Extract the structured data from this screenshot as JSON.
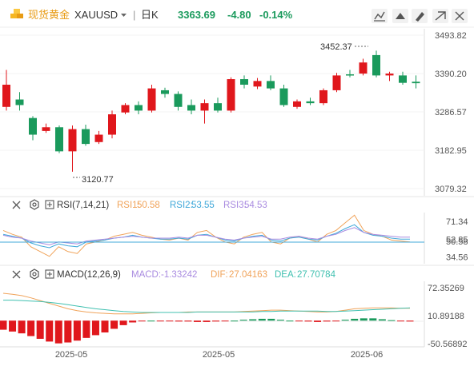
{
  "header": {
    "instrument_name": "现货黄金",
    "symbol": "XAUUSD",
    "separator": "|",
    "period": "日K",
    "price": "3363.69",
    "change": "-4.80",
    "change_percent": "-0.14%"
  },
  "colors": {
    "up": "#e0171c",
    "down": "#1a9a5c",
    "accent": "#1a9a5c",
    "rsi1": "#f0a35a",
    "rsi2": "#40a8d9",
    "rsi3": "#a98be0",
    "dif": "#f0a35a",
    "dea": "#40c0b0"
  },
  "icons": {
    "logo": "gold-bars-icon",
    "toolbar": [
      "draw-line-icon",
      "draw-tools-icon",
      "brush-icon",
      "minimize-icon",
      "close-icon"
    ],
    "indicator": [
      "close-icon",
      "settings-icon",
      "expand-icon"
    ]
  },
  "chart_data": [
    {
      "type": "candlestick",
      "y_axis_labels": [
        "3493.82",
        "3390.20",
        "3286.57",
        "3182.95",
        "3079.32"
      ],
      "ylim": [
        3079.32,
        3493.82
      ],
      "annotations": [
        {
          "text": "3452.37",
          "label": "high"
        },
        {
          "text": "3120.77",
          "label": "low"
        }
      ],
      "candles": [
        {
          "o": 3300,
          "c": 3360,
          "h": 3400,
          "l": 3290
        },
        {
          "o": 3320,
          "c": 3305,
          "h": 3340,
          "l": 3290
        },
        {
          "o": 3270,
          "c": 3225,
          "h": 3275,
          "l": 3210
        },
        {
          "o": 3235,
          "c": 3245,
          "h": 3255,
          "l": 3230
        },
        {
          "o": 3245,
          "c": 3180,
          "h": 3250,
          "l": 3175
        },
        {
          "o": 3180,
          "c": 3240,
          "h": 3250,
          "l": 3125
        },
        {
          "o": 3240,
          "c": 3200,
          "h": 3252,
          "l": 3195
        },
        {
          "o": 3205,
          "c": 3225,
          "h": 3235,
          "l": 3200
        },
        {
          "o": 3225,
          "c": 3280,
          "h": 3290,
          "l": 3215
        },
        {
          "o": 3285,
          "c": 3305,
          "h": 3310,
          "l": 3280
        },
        {
          "o": 3305,
          "c": 3290,
          "h": 3315,
          "l": 3280
        },
        {
          "o": 3290,
          "c": 3350,
          "h": 3360,
          "l": 3285
        },
        {
          "o": 3345,
          "c": 3335,
          "h": 3352,
          "l": 3325
        },
        {
          "o": 3335,
          "c": 3300,
          "h": 3342,
          "l": 3290
        },
        {
          "o": 3305,
          "c": 3290,
          "h": 3320,
          "l": 3280
        },
        {
          "o": 3290,
          "c": 3310,
          "h": 3320,
          "l": 3255
        },
        {
          "o": 3310,
          "c": 3290,
          "h": 3325,
          "l": 3285
        },
        {
          "o": 3290,
          "c": 3375,
          "h": 3380,
          "l": 3285
        },
        {
          "o": 3375,
          "c": 3360,
          "h": 3385,
          "l": 3350
        },
        {
          "o": 3355,
          "c": 3370,
          "h": 3378,
          "l": 3348
        },
        {
          "o": 3370,
          "c": 3350,
          "h": 3385,
          "l": 3345
        },
        {
          "o": 3350,
          "c": 3305,
          "h": 3360,
          "l": 3300
        },
        {
          "o": 3300,
          "c": 3315,
          "h": 3320,
          "l": 3295
        },
        {
          "o": 3315,
          "c": 3310,
          "h": 3325,
          "l": 3305
        },
        {
          "o": 3310,
          "c": 3345,
          "h": 3350,
          "l": 3305
        },
        {
          "o": 3345,
          "c": 3385,
          "h": 3392,
          "l": 3340
        },
        {
          "o": 3388,
          "c": 3385,
          "h": 3400,
          "l": 3380
        },
        {
          "o": 3390,
          "c": 3420,
          "h": 3430,
          "l": 3385
        },
        {
          "o": 3440,
          "c": 3385,
          "h": 3452,
          "l": 3380
        },
        {
          "o": 3385,
          "c": 3390,
          "h": 3395,
          "l": 3370
        },
        {
          "o": 3385,
          "c": 3365,
          "h": 3395,
          "l": 3360
        },
        {
          "o": 3368,
          "c": 3364,
          "h": 3385,
          "l": 3350
        }
      ],
      "x_tick_labels": [
        "2025-05",
        "2025-05",
        "2025-06"
      ]
    },
    {
      "type": "line",
      "indicator": "RSI",
      "params": "RSI(7,14,21)",
      "legend": [
        {
          "label": "RSI1:",
          "value": "50.58"
        },
        {
          "label": "RSI2:",
          "value": "53.55"
        },
        {
          "label": "RSI3:",
          "value": "54.53"
        }
      ],
      "y_axis_labels": [
        "71.34",
        "52.85",
        "50.58",
        "34.56"
      ],
      "ylim": [
        29,
        79
      ],
      "series": [
        {
          "name": "RSI1",
          "values": [
            62,
            58,
            55,
            45,
            40,
            35,
            45,
            40,
            38,
            48,
            50,
            52,
            56,
            58,
            60,
            57,
            55,
            53,
            52,
            54,
            52,
            60,
            62,
            55,
            50,
            48,
            55,
            58,
            60,
            50,
            48,
            54,
            56,
            53,
            50,
            58,
            62,
            70,
            78,
            62,
            58,
            56,
            52,
            51,
            50
          ]
        },
        {
          "name": "RSI2",
          "values": [
            58,
            56,
            54,
            49,
            46,
            44,
            48,
            46,
            45,
            50,
            51,
            52,
            54,
            55,
            57,
            55,
            54,
            53,
            53,
            54,
            53,
            57,
            58,
            55,
            52,
            51,
            54,
            56,
            57,
            52,
            51,
            54,
            55,
            53,
            52,
            56,
            59,
            64,
            68,
            60,
            57,
            56,
            54,
            53,
            53
          ]
        },
        {
          "name": "RSI3",
          "values": [
            57,
            55,
            54,
            51,
            49,
            47,
            50,
            49,
            48,
            51,
            52,
            53,
            54,
            55,
            56,
            55,
            54,
            54,
            54,
            55,
            54,
            57,
            57,
            55,
            53,
            52,
            54,
            55,
            56,
            53,
            53,
            55,
            56,
            54,
            53,
            56,
            58,
            62,
            65,
            60,
            58,
            57,
            56,
            55,
            55
          ]
        }
      ]
    },
    {
      "type": "bar",
      "indicator": "MACD",
      "params": "MACD(12,26,9)",
      "legend": [
        {
          "label": "MACD:",
          "value": "-1.33242"
        },
        {
          "label": "DIF:",
          "value": "27.04163"
        },
        {
          "label": "DEA:",
          "value": "27.70784"
        }
      ],
      "y_axis_labels": [
        "72.35269",
        "10.89188",
        "-50.56892"
      ],
      "ylim": [
        -50.56892,
        72.35269
      ],
      "macd_hist": [
        -20,
        -24,
        -28,
        -34,
        -40,
        -46,
        -50,
        -48,
        -44,
        -38,
        -32,
        -26,
        -18,
        -10,
        -4,
        -1,
        0,
        -1,
        -1,
        -2,
        -2,
        -3,
        -3,
        -2,
        -1,
        0,
        2,
        3,
        4,
        4,
        2,
        0,
        -1,
        -2,
        -3,
        -2,
        -1,
        2,
        4,
        5,
        5,
        3,
        1,
        -1,
        -2
      ],
      "dif": [
        60,
        58,
        55,
        50,
        44,
        38,
        32,
        26,
        22,
        19,
        17,
        16,
        15,
        15,
        15,
        16,
        17,
        18,
        18,
        18,
        19,
        19,
        19,
        19,
        19,
        19,
        20,
        21,
        22,
        23,
        23,
        22,
        21,
        20,
        19,
        19,
        20,
        23,
        26,
        27,
        28,
        28,
        28,
        27,
        27
      ],
      "dea": [
        45,
        45,
        44,
        43,
        42,
        40,
        38,
        35,
        32,
        29,
        26,
        24,
        22,
        20,
        19,
        18,
        18,
        18,
        18,
        18,
        18,
        19,
        19,
        19,
        19,
        19,
        19,
        19,
        20,
        20,
        21,
        21,
        21,
        21,
        21,
        20,
        20,
        21,
        22,
        23,
        24,
        25,
        26,
        27,
        28
      ]
    }
  ]
}
